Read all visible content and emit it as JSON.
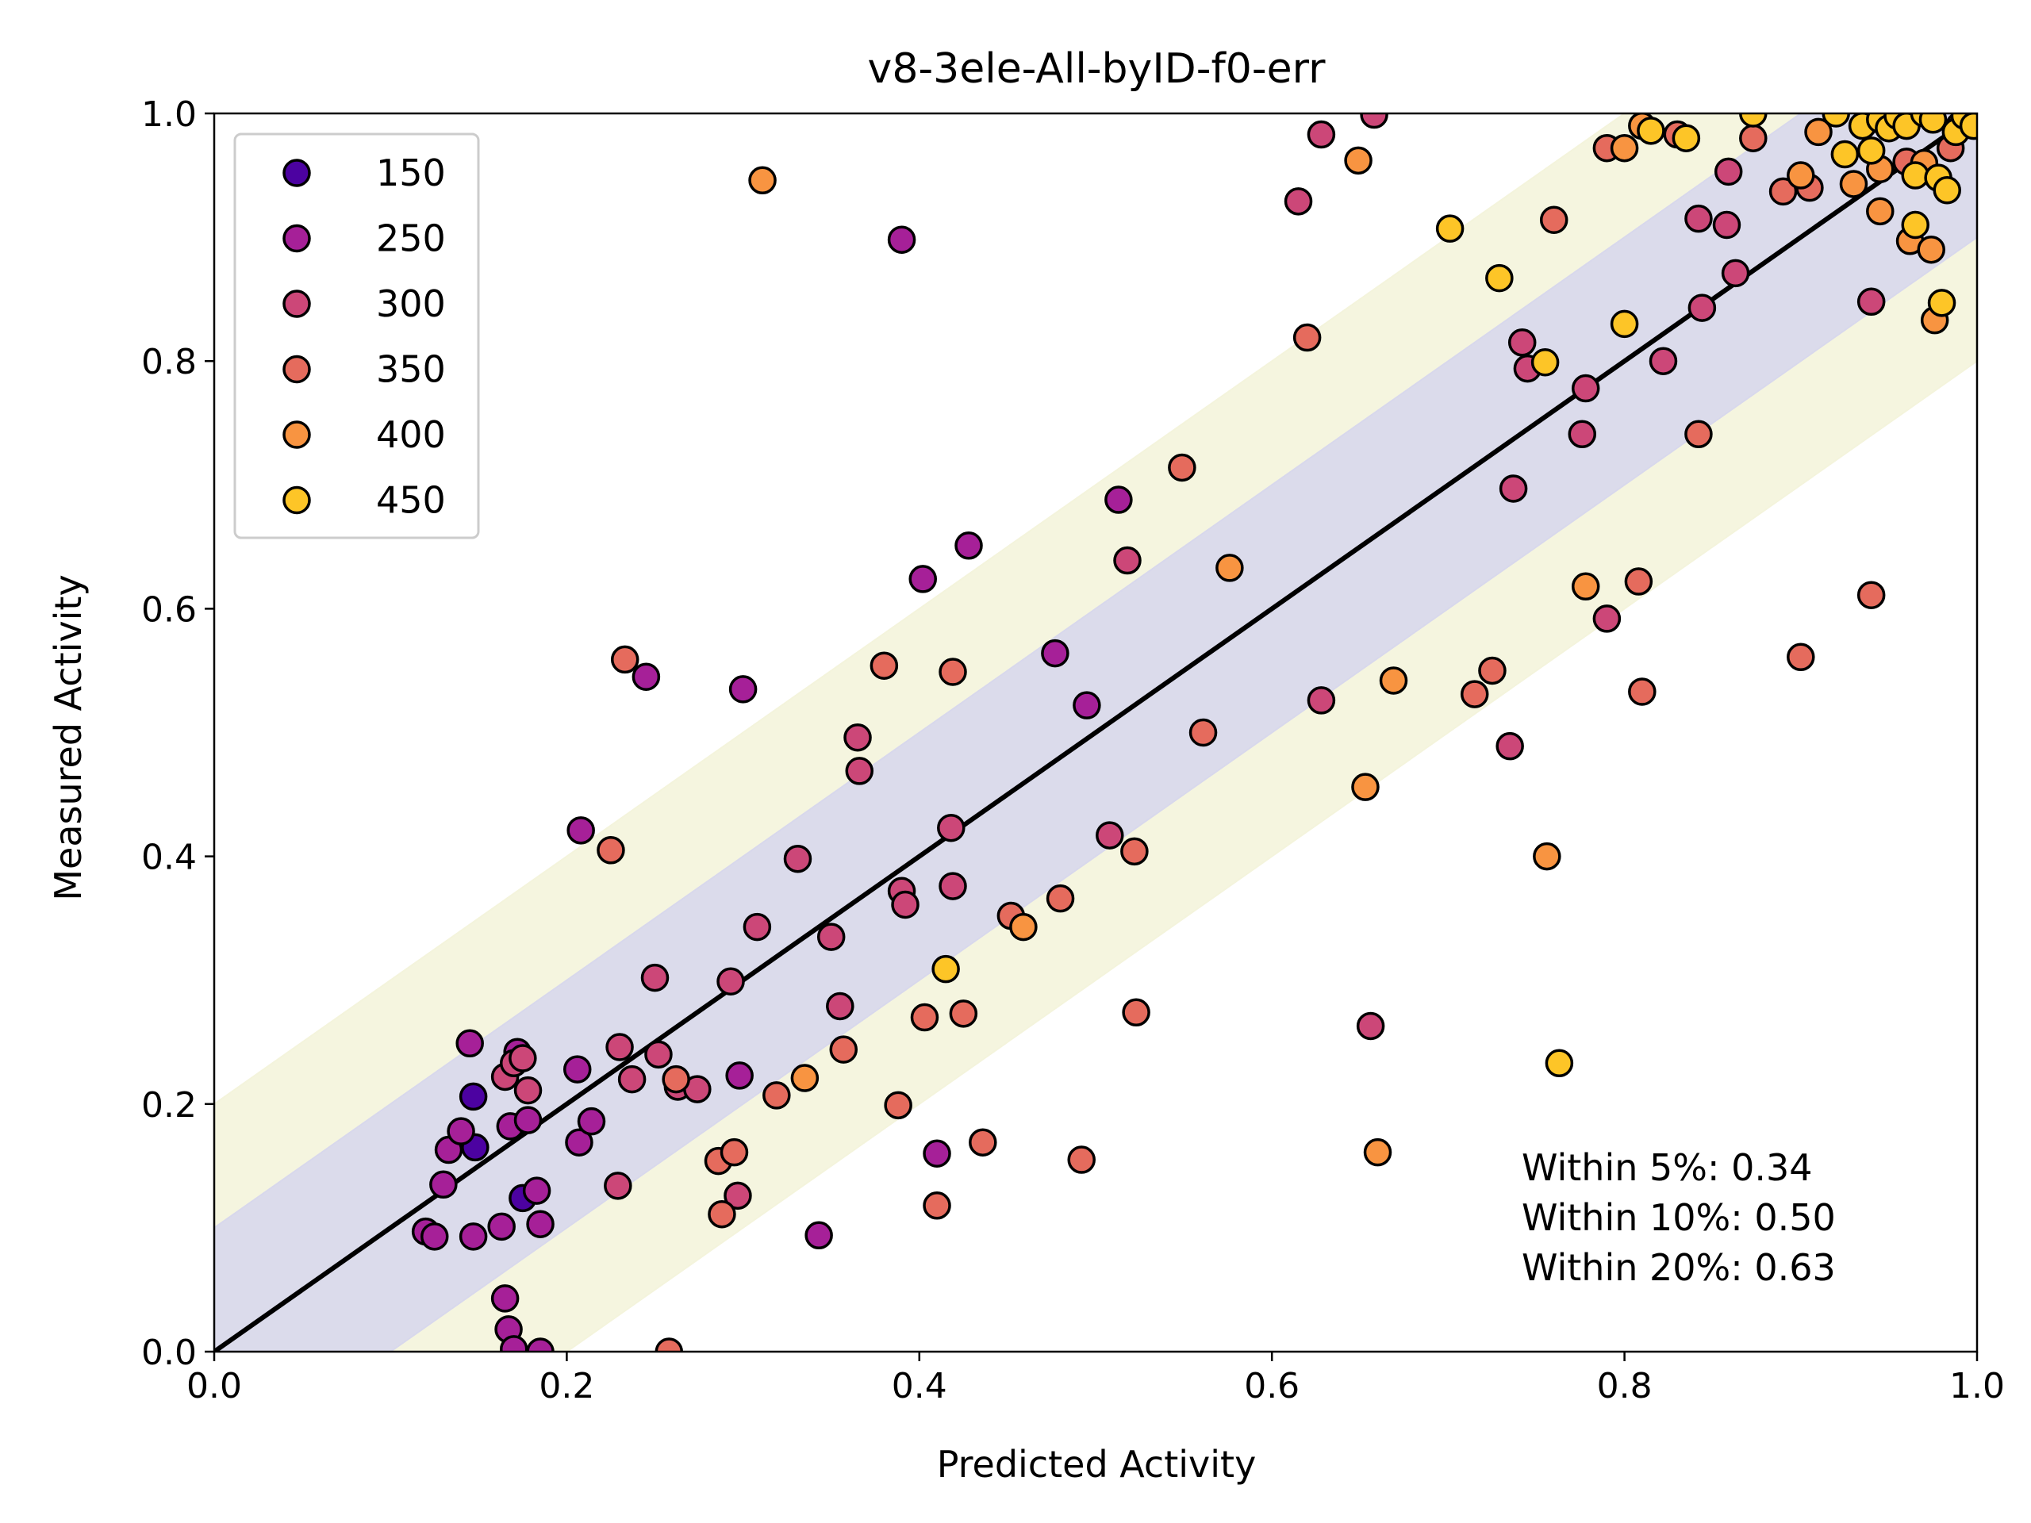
{
  "chart_data": {
    "type": "scatter",
    "title": "v8-3ele-All-byID-f0-err",
    "xlabel": "Predicted Activity",
    "ylabel": "Measured Activity",
    "xlim": [
      0.0,
      1.0
    ],
    "ylim": [
      0.0,
      1.0
    ],
    "xticks": [
      "0.0",
      "0.2",
      "0.4",
      "0.6",
      "0.8",
      "1.0"
    ],
    "yticks": [
      "0.0",
      "0.2",
      "0.4",
      "0.6",
      "0.8",
      "1.0"
    ],
    "grid": false,
    "legend_position": "top-left",
    "colorscale": "plasma",
    "reference_line": {
      "x": [
        0,
        1
      ],
      "y": [
        0,
        1
      ],
      "color": "#000000"
    },
    "bands": [
      {
        "within": 0.1,
        "color": "#d8d8ec"
      },
      {
        "within": 0.2,
        "color": "#f4f4dc"
      }
    ],
    "legend": [
      {
        "label": "150",
        "color": "#4c02a1"
      },
      {
        "label": "250",
        "color": "#a62098"
      },
      {
        "label": "300",
        "color": "#cc4778"
      },
      {
        "label": "350",
        "color": "#e56b5d"
      },
      {
        "label": "400",
        "color": "#f89441"
      },
      {
        "label": "450",
        "color": "#fdc527"
      }
    ],
    "annotations": [
      "Within 5%: 0.34",
      "Within 10%: 0.50",
      "Within 20%: 0.63"
    ],
    "series": [
      {
        "name": "150",
        "color": "#4c02a1",
        "points": [
          [
            0.147,
            0.206
          ],
          [
            0.148,
            0.165
          ],
          [
            0.175,
            0.124
          ]
        ]
      },
      {
        "name": "250",
        "color": "#a62098",
        "points": [
          [
            0.12,
            0.097
          ],
          [
            0.125,
            0.093
          ],
          [
            0.147,
            0.093
          ],
          [
            0.13,
            0.135
          ],
          [
            0.133,
            0.163
          ],
          [
            0.14,
            0.178
          ],
          [
            0.145,
            0.249
          ],
          [
            0.163,
            0.101
          ],
          [
            0.165,
            0.043
          ],
          [
            0.167,
            0.018
          ],
          [
            0.17,
            0.002
          ],
          [
            0.168,
            0.182
          ],
          [
            0.172,
            0.242
          ],
          [
            0.178,
            0.187
          ],
          [
            0.183,
            0.13
          ],
          [
            0.185,
            0.103
          ],
          [
            0.185,
            0.0
          ],
          [
            0.206,
            0.228
          ],
          [
            0.207,
            0.169
          ],
          [
            0.208,
            0.421
          ],
          [
            0.214,
            0.186
          ],
          [
            0.245,
            0.545
          ],
          [
            0.298,
            0.223
          ],
          [
            0.3,
            0.535
          ],
          [
            0.343,
            0.094
          ],
          [
            0.39,
            0.898
          ],
          [
            0.41,
            0.16
          ],
          [
            0.428,
            0.651
          ],
          [
            0.477,
            0.564
          ],
          [
            0.495,
            0.522
          ],
          [
            0.513,
            0.688
          ],
          [
            0.402,
            0.624
          ]
        ]
      },
      {
        "name": "300",
        "color": "#cc4778",
        "points": [
          [
            0.165,
            0.222
          ],
          [
            0.17,
            0.233
          ],
          [
            0.175,
            0.237
          ],
          [
            0.178,
            0.211
          ],
          [
            0.229,
            0.134
          ],
          [
            0.23,
            0.246
          ],
          [
            0.237,
            0.22
          ],
          [
            0.25,
            0.302
          ],
          [
            0.252,
            0.24
          ],
          [
            0.263,
            0.214
          ],
          [
            0.274,
            0.212
          ],
          [
            0.293,
            0.299
          ],
          [
            0.297,
            0.126
          ],
          [
            0.308,
            0.343
          ],
          [
            0.331,
            0.398
          ],
          [
            0.35,
            0.335
          ],
          [
            0.355,
            0.279
          ],
          [
            0.365,
            0.496
          ],
          [
            0.366,
            0.469
          ],
          [
            0.39,
            0.372
          ],
          [
            0.392,
            0.361
          ],
          [
            0.418,
            0.423
          ],
          [
            0.419,
            0.376
          ],
          [
            0.508,
            0.417
          ],
          [
            0.518,
            0.639
          ],
          [
            0.615,
            0.929
          ],
          [
            0.628,
            0.983
          ],
          [
            0.628,
            0.526
          ],
          [
            0.658,
            0.999
          ],
          [
            0.737,
            0.697
          ],
          [
            0.742,
            0.815
          ],
          [
            0.745,
            0.794
          ],
          [
            0.778,
            0.778
          ],
          [
            0.776,
            0.741
          ],
          [
            0.822,
            0.8
          ],
          [
            0.842,
            0.915
          ],
          [
            0.858,
            0.91
          ],
          [
            0.859,
            0.953
          ],
          [
            0.863,
            0.871
          ],
          [
            0.94,
            0.848
          ],
          [
            0.735,
            0.489
          ],
          [
            0.79,
            0.592
          ],
          [
            0.656,
            0.263
          ],
          [
            0.844,
            0.843
          ]
        ]
      },
      {
        "name": "350",
        "color": "#e56b5d",
        "points": [
          [
            0.225,
            0.405
          ],
          [
            0.233,
            0.559
          ],
          [
            0.258,
            0.0
          ],
          [
            0.262,
            0.22
          ],
          [
            0.286,
            0.154
          ],
          [
            0.288,
            0.111
          ],
          [
            0.295,
            0.161
          ],
          [
            0.319,
            0.207
          ],
          [
            0.357,
            0.244
          ],
          [
            0.38,
            0.554
          ],
          [
            0.388,
            0.199
          ],
          [
            0.403,
            0.27
          ],
          [
            0.41,
            0.118
          ],
          [
            0.419,
            0.549
          ],
          [
            0.425,
            0.273
          ],
          [
            0.436,
            0.169
          ],
          [
            0.452,
            0.352
          ],
          [
            0.48,
            0.366
          ],
          [
            0.492,
            0.155
          ],
          [
            0.522,
            0.404
          ],
          [
            0.523,
            0.274
          ],
          [
            0.549,
            0.714
          ],
          [
            0.561,
            0.5
          ],
          [
            0.62,
            0.819
          ],
          [
            0.715,
            0.531
          ],
          [
            0.725,
            0.55
          ],
          [
            0.76,
            0.914
          ],
          [
            0.81,
            0.533
          ],
          [
            0.808,
            0.622
          ],
          [
            0.9,
            0.561
          ],
          [
            0.94,
            0.611
          ],
          [
            0.842,
            0.741
          ],
          [
            0.873,
            0.98
          ],
          [
            0.89,
            0.937
          ],
          [
            0.905,
            0.94
          ],
          [
            0.96,
            0.961
          ],
          [
            0.985,
            0.972
          ],
          [
            0.79,
            0.972
          ],
          [
            0.83,
            0.983
          ]
        ]
      },
      {
        "name": "400",
        "color": "#f89441",
        "points": [
          [
            0.311,
            0.946
          ],
          [
            0.335,
            0.221
          ],
          [
            0.459,
            0.343
          ],
          [
            0.576,
            0.633
          ],
          [
            0.649,
            0.962
          ],
          [
            0.653,
            0.456
          ],
          [
            0.66,
            0.161
          ],
          [
            0.669,
            0.542
          ],
          [
            0.756,
            0.4
          ],
          [
            0.778,
            0.618
          ],
          [
            0.81,
            0.99
          ],
          [
            0.8,
            0.972
          ],
          [
            0.9,
            0.95
          ],
          [
            0.91,
            0.985
          ],
          [
            0.945,
            0.921
          ],
          [
            0.962,
            0.897
          ],
          [
            0.974,
            0.89
          ],
          [
            0.976,
            0.833
          ],
          [
            0.93,
            0.943
          ],
          [
            0.945,
            0.955
          ],
          [
            0.97,
            0.96
          ],
          [
            0.99,
            0.99
          ]
        ]
      },
      {
        "name": "450",
        "color": "#fdc527",
        "points": [
          [
            0.415,
            0.309
          ],
          [
            0.701,
            0.907
          ],
          [
            0.729,
            0.867
          ],
          [
            0.755,
            0.799
          ],
          [
            0.763,
            0.233
          ],
          [
            0.8,
            0.83
          ],
          [
            0.815,
            0.986
          ],
          [
            0.835,
            0.98
          ],
          [
            0.873,
            1.0
          ],
          [
            0.92,
            1.0
          ],
          [
            0.925,
            0.967
          ],
          [
            0.935,
            0.99
          ],
          [
            0.94,
            0.97
          ],
          [
            0.945,
            0.995
          ],
          [
            0.95,
            0.988
          ],
          [
            0.955,
            0.998
          ],
          [
            0.96,
            0.99
          ],
          [
            0.965,
            0.95
          ],
          [
            0.965,
            0.91
          ],
          [
            0.97,
            1.0
          ],
          [
            0.975,
            0.995
          ],
          [
            0.978,
            0.948
          ],
          [
            0.98,
            0.847
          ],
          [
            0.983,
            0.938
          ],
          [
            0.988,
            0.985
          ],
          [
            0.993,
            0.998
          ],
          [
            0.998,
            0.99
          ]
        ]
      }
    ]
  }
}
